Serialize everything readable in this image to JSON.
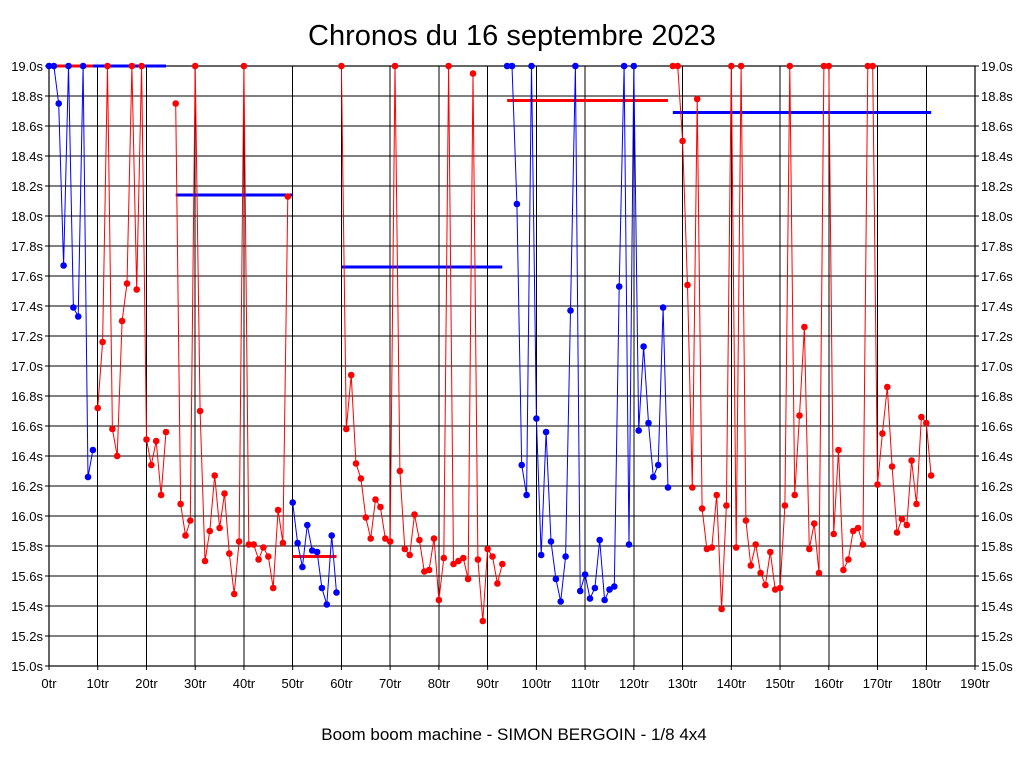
{
  "chart_data": {
    "type": "line",
    "title": "Chronos du 16 septembre 2023",
    "caption": "Boom boom machine - SIMON BERGOIN - 1/8 4x4",
    "ylim": [
      15.0,
      19.0
    ],
    "xlim": [
      0,
      190
    ],
    "y_ticks": [
      {
        "v": 19.0,
        "label": "19.0s"
      },
      {
        "v": 18.8,
        "label": "18.8s"
      },
      {
        "v": 18.6,
        "label": "18.6s"
      },
      {
        "v": 18.4,
        "label": "18.4s"
      },
      {
        "v": 18.2,
        "label": "18.2s"
      },
      {
        "v": 18.0,
        "label": "18.0s"
      },
      {
        "v": 17.8,
        "label": "17.8s"
      },
      {
        "v": 17.6,
        "label": "17.6s"
      },
      {
        "v": 17.4,
        "label": "17.4s"
      },
      {
        "v": 17.2,
        "label": "17.2s"
      },
      {
        "v": 17.0,
        "label": "17.0s"
      },
      {
        "v": 16.8,
        "label": "16.8s"
      },
      {
        "v": 16.6,
        "label": "16.6s"
      },
      {
        "v": 16.4,
        "label": "16.4s"
      },
      {
        "v": 16.2,
        "label": "16.2s"
      },
      {
        "v": 16.0,
        "label": "16.0s"
      },
      {
        "v": 15.8,
        "label": "15.8s"
      },
      {
        "v": 15.6,
        "label": "15.6s"
      },
      {
        "v": 15.4,
        "label": "15.4s"
      },
      {
        "v": 15.2,
        "label": "15.2s"
      },
      {
        "v": 15.0,
        "label": "15.0s"
      }
    ],
    "x_ticks": [
      {
        "v": 0,
        "label": "0tr"
      },
      {
        "v": 10,
        "label": "10tr"
      },
      {
        "v": 20,
        "label": "20tr"
      },
      {
        "v": 30,
        "label": "30tr"
      },
      {
        "v": 40,
        "label": "40tr"
      },
      {
        "v": 50,
        "label": "50tr"
      },
      {
        "v": 60,
        "label": "60tr"
      },
      {
        "v": 70,
        "label": "70tr"
      },
      {
        "v": 80,
        "label": "80tr"
      },
      {
        "v": 90,
        "label": "90tr"
      },
      {
        "v": 100,
        "label": "100tr"
      },
      {
        "v": 110,
        "label": "110tr"
      },
      {
        "v": 120,
        "label": "120tr"
      },
      {
        "v": 130,
        "label": "130tr"
      },
      {
        "v": 140,
        "label": "140tr"
      },
      {
        "v": 150,
        "label": "150tr"
      },
      {
        "v": 160,
        "label": "160tr"
      },
      {
        "v": 170,
        "label": "170tr"
      },
      {
        "v": 180,
        "label": "180tr"
      },
      {
        "v": 190,
        "label": "190tr"
      }
    ],
    "grid": true,
    "series": [
      {
        "color": "#0000ff",
        "points": [
          [
            0,
            19.0
          ],
          [
            1,
            19.0
          ],
          [
            2,
            18.75
          ],
          [
            3,
            17.67
          ],
          [
            4,
            19.0
          ],
          [
            5,
            17.39
          ],
          [
            6,
            17.33
          ],
          [
            7,
            19.0
          ],
          [
            8,
            16.26
          ],
          [
            9,
            16.44
          ]
        ]
      },
      {
        "color": "#ff0000",
        "points": [
          [
            10,
            16.72
          ],
          [
            11,
            17.16
          ],
          [
            12,
            19.0
          ],
          [
            13,
            16.58
          ],
          [
            14,
            16.4
          ],
          [
            15,
            17.3
          ],
          [
            16,
            17.55
          ],
          [
            17,
            19.0
          ],
          [
            18,
            17.51
          ],
          [
            19,
            19.0
          ],
          [
            20,
            16.51
          ],
          [
            21,
            16.34
          ],
          [
            22,
            16.5
          ],
          [
            23,
            16.14
          ],
          [
            24,
            16.56
          ]
        ]
      },
      {
        "color": "#ff0000",
        "points": [
          [
            26,
            18.75
          ],
          [
            27,
            16.08
          ],
          [
            28,
            15.87
          ],
          [
            29,
            15.97
          ],
          [
            30,
            19.0
          ],
          [
            31,
            16.7
          ],
          [
            32,
            15.7
          ],
          [
            33,
            15.9
          ],
          [
            34,
            16.27
          ],
          [
            35,
            15.92
          ],
          [
            36,
            16.15
          ],
          [
            37,
            15.75
          ],
          [
            38,
            15.48
          ],
          [
            39,
            15.83
          ],
          [
            40,
            19.0
          ],
          [
            41,
            15.81
          ],
          [
            42,
            15.81
          ],
          [
            43,
            15.71
          ],
          [
            44,
            15.79
          ],
          [
            45,
            15.73
          ],
          [
            46,
            15.52
          ],
          [
            47,
            16.04
          ],
          [
            48,
            15.82
          ],
          [
            49,
            18.13
          ]
        ]
      },
      {
        "color": "#0000ff",
        "points": [
          [
            50,
            16.09
          ],
          [
            51,
            15.82
          ],
          [
            52,
            15.66
          ],
          [
            53,
            15.94
          ],
          [
            54,
            15.77
          ],
          [
            55,
            15.76
          ],
          [
            56,
            15.52
          ],
          [
            57,
            15.41
          ],
          [
            58,
            15.87
          ],
          [
            59,
            15.49
          ]
        ]
      },
      {
        "color": "#ff0000",
        "points": [
          [
            60,
            19.0
          ],
          [
            61,
            16.58
          ],
          [
            62,
            16.94
          ],
          [
            63,
            16.35
          ],
          [
            64,
            16.25
          ],
          [
            65,
            15.99
          ],
          [
            66,
            15.85
          ],
          [
            67,
            16.11
          ],
          [
            68,
            16.06
          ],
          [
            69,
            15.85
          ],
          [
            70,
            15.83
          ],
          [
            71,
            19.0
          ],
          [
            72,
            16.3
          ],
          [
            73,
            15.78
          ],
          [
            74,
            15.74
          ],
          [
            75,
            16.01
          ],
          [
            76,
            15.84
          ],
          [
            77,
            15.63
          ],
          [
            78,
            15.64
          ],
          [
            79,
            15.85
          ],
          [
            80,
            15.44
          ],
          [
            81,
            15.72
          ],
          [
            82,
            19.0
          ],
          [
            83,
            15.68
          ],
          [
            84,
            15.7
          ],
          [
            85,
            15.72
          ],
          [
            86,
            15.58
          ],
          [
            87,
            18.95
          ],
          [
            88,
            15.71
          ],
          [
            89,
            15.3
          ],
          [
            90,
            15.78
          ],
          [
            91,
            15.73
          ],
          [
            92,
            15.55
          ],
          [
            93,
            15.68
          ]
        ]
      },
      {
        "color": "#0000ff",
        "points": [
          [
            94,
            19.0
          ],
          [
            95,
            19.0
          ],
          [
            96,
            18.08
          ],
          [
            97,
            16.34
          ],
          [
            98,
            16.14
          ],
          [
            99,
            19.0
          ],
          [
            100,
            16.65
          ],
          [
            101,
            15.74
          ],
          [
            102,
            16.56
          ],
          [
            103,
            15.83
          ],
          [
            104,
            15.58
          ],
          [
            105,
            15.43
          ],
          [
            106,
            15.73
          ],
          [
            107,
            17.37
          ],
          [
            108,
            19.0
          ],
          [
            109,
            15.5
          ],
          [
            110,
            15.61
          ],
          [
            111,
            15.45
          ],
          [
            112,
            15.52
          ],
          [
            113,
            15.84
          ],
          [
            114,
            15.44
          ],
          [
            115,
            15.51
          ],
          [
            116,
            15.53
          ],
          [
            117,
            17.53
          ],
          [
            118,
            19.0
          ],
          [
            119,
            15.81
          ],
          [
            120,
            19.0
          ],
          [
            121,
            16.57
          ],
          [
            122,
            17.13
          ],
          [
            123,
            16.62
          ],
          [
            124,
            16.26
          ],
          [
            125,
            16.34
          ],
          [
            126,
            17.39
          ],
          [
            127,
            16.19
          ]
        ]
      },
      {
        "color": "#ff0000",
        "points": [
          [
            128,
            19.0
          ],
          [
            129,
            19.0
          ],
          [
            130,
            18.5
          ],
          [
            131,
            17.54
          ],
          [
            132,
            16.19
          ],
          [
            133,
            18.78
          ],
          [
            134,
            16.05
          ],
          [
            135,
            15.78
          ],
          [
            136,
            15.79
          ],
          [
            137,
            16.14
          ],
          [
            138,
            15.38
          ],
          [
            139,
            16.07
          ],
          [
            140,
            19.0
          ],
          [
            141,
            15.79
          ],
          [
            142,
            19.0
          ],
          [
            143,
            15.97
          ],
          [
            144,
            15.67
          ],
          [
            145,
            15.81
          ],
          [
            146,
            15.62
          ],
          [
            147,
            15.54
          ],
          [
            148,
            15.76
          ],
          [
            149,
            15.51
          ],
          [
            150,
            15.52
          ],
          [
            151,
            16.07
          ],
          [
            152,
            19.0
          ],
          [
            153,
            16.14
          ],
          [
            154,
            16.67
          ],
          [
            155,
            17.26
          ],
          [
            156,
            15.78
          ],
          [
            157,
            15.95
          ],
          [
            158,
            15.62
          ],
          [
            159,
            19.0
          ],
          [
            160,
            19.0
          ],
          [
            161,
            15.88
          ],
          [
            162,
            16.44
          ],
          [
            163,
            15.64
          ],
          [
            164,
            15.71
          ],
          [
            165,
            15.9
          ],
          [
            166,
            15.92
          ],
          [
            167,
            15.81
          ],
          [
            168,
            19.0
          ],
          [
            169,
            19.0
          ],
          [
            170,
            16.21
          ],
          [
            171,
            16.55
          ],
          [
            172,
            16.86
          ],
          [
            173,
            16.33
          ],
          [
            174,
            15.89
          ],
          [
            175,
            15.98
          ],
          [
            176,
            15.94
          ],
          [
            177,
            16.37
          ],
          [
            178,
            16.08
          ],
          [
            179,
            16.66
          ],
          [
            180,
            16.62
          ],
          [
            181,
            16.27
          ]
        ]
      }
    ],
    "reference_lines": [
      {
        "color": "#ff0000",
        "x": [
          0,
          9
        ],
        "y": 19.0
      },
      {
        "color": "#0000ff",
        "x": [
          9,
          24
        ],
        "y": 19.0
      },
      {
        "color": "#0000ff",
        "x": [
          26,
          50
        ],
        "y": 18.14
      },
      {
        "color": "#ff0000",
        "x": [
          50,
          59
        ],
        "y": 15.73
      },
      {
        "color": "#0000ff",
        "x": [
          60,
          93
        ],
        "y": 17.66
      },
      {
        "color": "#ff0000",
        "x": [
          94,
          127
        ],
        "y": 18.77
      },
      {
        "color": "#0000ff",
        "x": [
          128,
          181
        ],
        "y": 18.69
      }
    ]
  }
}
